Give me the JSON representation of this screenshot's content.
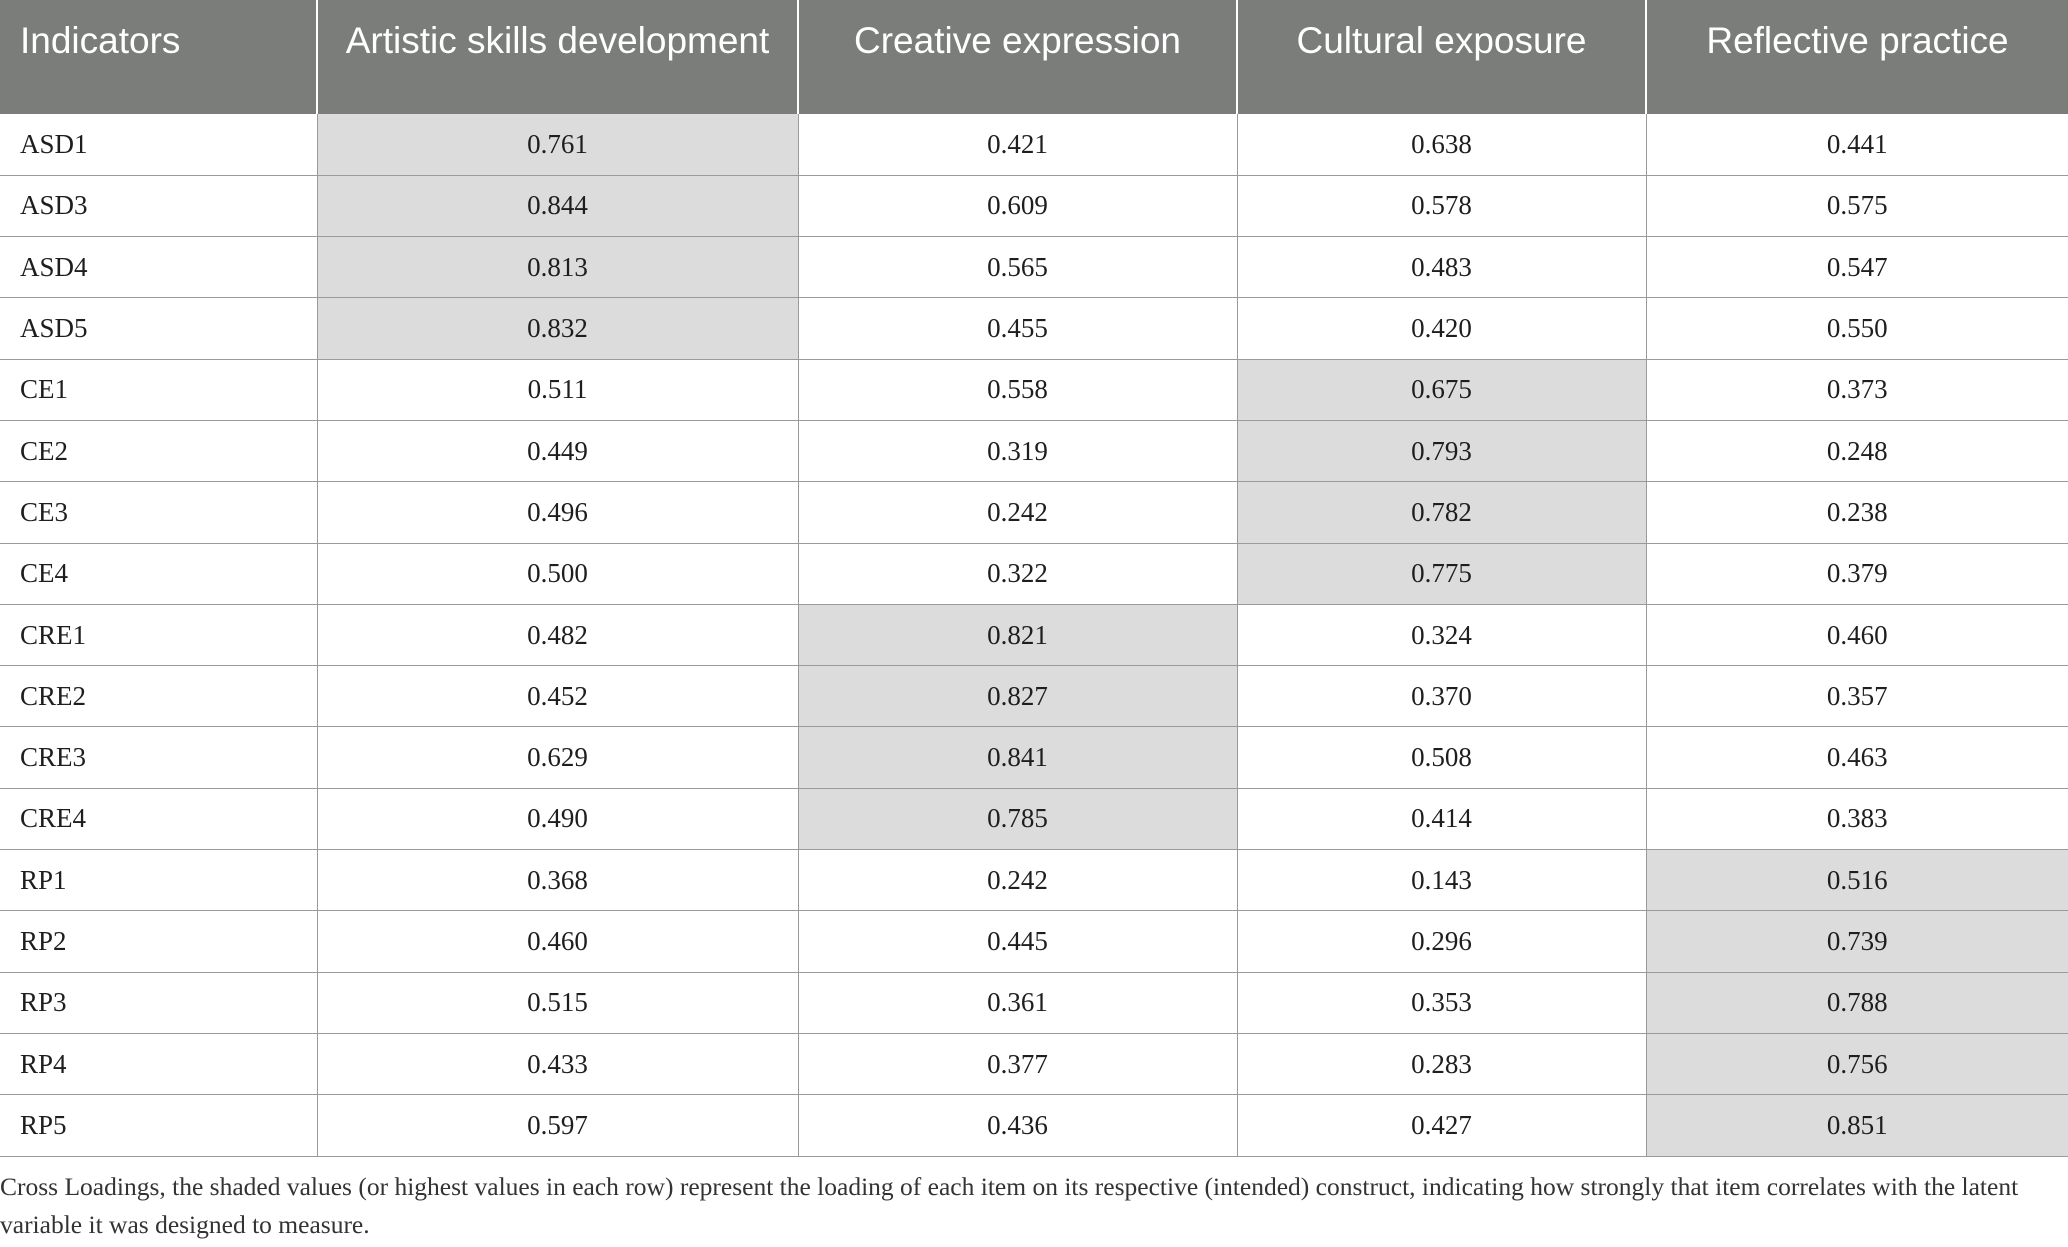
{
  "table": {
    "headers": [
      "Indicators",
      "Artistic skills development",
      "Creative expression",
      "Cultural exposure",
      "Reflective practice"
    ],
    "rows": [
      {
        "indicator": "ASD1",
        "values": [
          "0.761",
          "0.421",
          "0.638",
          "0.441"
        ],
        "shaded_column": 0
      },
      {
        "indicator": "ASD3",
        "values": [
          "0.844",
          "0.609",
          "0.578",
          "0.575"
        ],
        "shaded_column": 0
      },
      {
        "indicator": "ASD4",
        "values": [
          "0.813",
          "0.565",
          "0.483",
          "0.547"
        ],
        "shaded_column": 0
      },
      {
        "indicator": "ASD5",
        "values": [
          "0.832",
          "0.455",
          "0.420",
          "0.550"
        ],
        "shaded_column": 0
      },
      {
        "indicator": "CE1",
        "values": [
          "0.511",
          "0.558",
          "0.675",
          "0.373"
        ],
        "shaded_column": 2
      },
      {
        "indicator": "CE2",
        "values": [
          "0.449",
          "0.319",
          "0.793",
          "0.248"
        ],
        "shaded_column": 2
      },
      {
        "indicator": "CE3",
        "values": [
          "0.496",
          "0.242",
          "0.782",
          "0.238"
        ],
        "shaded_column": 2
      },
      {
        "indicator": "CE4",
        "values": [
          "0.500",
          "0.322",
          "0.775",
          "0.379"
        ],
        "shaded_column": 2
      },
      {
        "indicator": "CRE1",
        "values": [
          "0.482",
          "0.821",
          "0.324",
          "0.460"
        ],
        "shaded_column": 1
      },
      {
        "indicator": "CRE2",
        "values": [
          "0.452",
          "0.827",
          "0.370",
          "0.357"
        ],
        "shaded_column": 1
      },
      {
        "indicator": "CRE3",
        "values": [
          "0.629",
          "0.841",
          "0.508",
          "0.463"
        ],
        "shaded_column": 1
      },
      {
        "indicator": "CRE4",
        "values": [
          "0.490",
          "0.785",
          "0.414",
          "0.383"
        ],
        "shaded_column": 1
      },
      {
        "indicator": "RP1",
        "values": [
          "0.368",
          "0.242",
          "0.143",
          "0.516"
        ],
        "shaded_column": 3
      },
      {
        "indicator": "RP2",
        "values": [
          "0.460",
          "0.445",
          "0.296",
          "0.739"
        ],
        "shaded_column": 3
      },
      {
        "indicator": "RP3",
        "values": [
          "0.515",
          "0.361",
          "0.353",
          "0.788"
        ],
        "shaded_column": 3
      },
      {
        "indicator": "RP4",
        "values": [
          "0.433",
          "0.377",
          "0.283",
          "0.756"
        ],
        "shaded_column": 3
      },
      {
        "indicator": "RP5",
        "values": [
          "0.597",
          "0.436",
          "0.427",
          "0.851"
        ],
        "shaded_column": 3
      }
    ]
  },
  "colors": {
    "header_background": "#7b7d7b",
    "header_text": "#ffffff",
    "shaded_cell": "#dcdcdc"
  },
  "footnote": "Cross Loadings, the shaded values (or highest values in each row) represent the loading of each item on its respective (intended) construct, indicating how strongly that item correlates with the latent variable it was designed to measure."
}
